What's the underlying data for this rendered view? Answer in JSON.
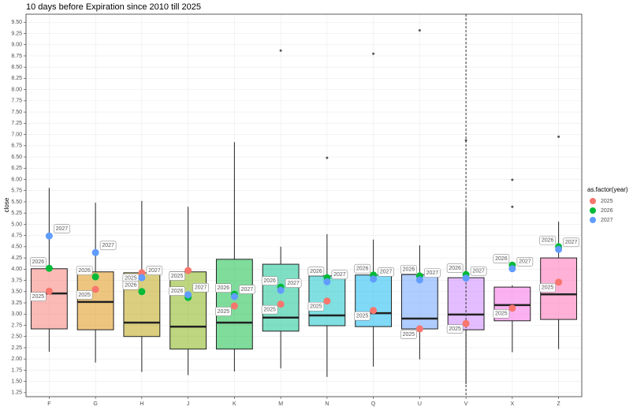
{
  "chart_data": {
    "type": "boxplot",
    "title": "10 days before Expiration since 2010 till 2025",
    "ylabel": "close",
    "legend_title": "as.factor(year)",
    "categories": [
      "F",
      "G",
      "H",
      "J",
      "K",
      "M",
      "N",
      "Q",
      "U",
      "V",
      "X",
      "Z"
    ],
    "box_colors": [
      "#F8766D",
      "#DE8C00",
      "#B79F00",
      "#7CAE00",
      "#00BA38",
      "#00C08B",
      "#00BFC4",
      "#00B4F0",
      "#619CFF",
      "#C77CFF",
      "#F564E3",
      "#FF64B0"
    ],
    "boxes": [
      {
        "low": 2.16,
        "q1": 2.67,
        "median": 3.46,
        "q3": 4.01,
        "high": 5.81,
        "outliers": []
      },
      {
        "low": 1.92,
        "q1": 2.65,
        "median": 3.27,
        "q3": 3.94,
        "high": 5.48,
        "outliers": []
      },
      {
        "low": 1.71,
        "q1": 2.5,
        "median": 2.81,
        "q3": 3.92,
        "high": 5.52,
        "outliers": []
      },
      {
        "low": 1.64,
        "q1": 2.22,
        "median": 2.72,
        "q3": 3.94,
        "high": 5.39,
        "outliers": []
      },
      {
        "low": 1.72,
        "q1": 2.22,
        "median": 2.81,
        "q3": 4.22,
        "high": 6.83,
        "outliers": []
      },
      {
        "low": 1.79,
        "q1": 2.62,
        "median": 2.92,
        "q3": 4.11,
        "high": 4.5,
        "outliers": [
          8.87
        ]
      },
      {
        "low": 1.6,
        "q1": 2.74,
        "median": 2.97,
        "q3": 3.85,
        "high": 4.78,
        "outliers": [
          6.48
        ]
      },
      {
        "low": 1.83,
        "q1": 2.72,
        "median": 3.02,
        "q3": 3.87,
        "high": 4.66,
        "outliers": [
          8.8
        ]
      },
      {
        "low": 1.99,
        "q1": 2.67,
        "median": 2.9,
        "q3": 3.88,
        "high": 4.53,
        "outliers": [
          9.32
        ]
      },
      {
        "low": 1.44,
        "q1": 2.65,
        "median": 2.99,
        "q3": 3.81,
        "high": 5.32,
        "outliers": [
          6.87
        ]
      },
      {
        "low": 2.15,
        "q1": 2.85,
        "median": 3.2,
        "q3": 3.6,
        "high": 3.64,
        "outliers": [
          5.99,
          5.39
        ]
      },
      {
        "low": 2.22,
        "q1": 2.88,
        "median": 3.44,
        "q3": 4.25,
        "high": 5.06,
        "outliers": [
          6.95
        ]
      }
    ],
    "series": [
      {
        "name": "2025",
        "color": "#F8766D",
        "values": [
          3.51,
          3.55,
          3.92,
          3.97,
          3.18,
          3.22,
          3.29,
          3.08,
          2.67,
          2.79,
          3.13,
          3.71
        ]
      },
      {
        "name": "2026",
        "color": "#00BA38",
        "values": [
          4.02,
          3.83,
          3.5,
          3.37,
          3.44,
          3.6,
          3.81,
          3.87,
          3.85,
          3.88,
          4.09,
          4.5
        ]
      },
      {
        "name": "2027",
        "color": "#619CFF",
        "values": [
          4.74,
          4.37,
          3.81,
          3.43,
          3.39,
          3.53,
          3.72,
          3.78,
          3.76,
          3.8,
          4.01,
          4.44
        ]
      }
    ],
    "vline": "V",
    "ylim": [
      1.16,
      9.68
    ],
    "yticks": [
      1.25,
      {
        "value": 1.5,
        "label": "1.50"
      },
      1.75,
      {
        "value": 2,
        "label": "2.00"
      },
      2.25,
      {
        "value": 2.5,
        "label": "2.50"
      },
      2.75,
      {
        "value": 3,
        "label": "3.00"
      },
      3.25,
      {
        "value": 3.5,
        "label": "3.50"
      },
      3.75,
      {
        "value": 4,
        "label": "4.00"
      },
      4.25,
      {
        "value": 4.5,
        "label": "4.50"
      },
      4.75,
      {
        "value": 5,
        "label": "5.00"
      },
      5.25,
      {
        "value": 5.5,
        "label": "5.50"
      },
      5.75,
      {
        "value": 6,
        "label": "6.00"
      },
      6.25,
      {
        "value": 6.5,
        "label": "6.50"
      },
      6.75,
      {
        "value": 7,
        "label": "7.00"
      },
      7.25,
      {
        "value": 7.5,
        "label": "7.50"
      },
      7.75,
      {
        "value": 8,
        "label": "8.00"
      },
      8.25,
      {
        "value": 8.5,
        "label": "8.50"
      },
      8.75,
      {
        "value": 9,
        "label": "9.00"
      },
      9.25,
      {
        "value": 9.5,
        "label": "9.50"
      }
    ],
    "grid": true
  }
}
